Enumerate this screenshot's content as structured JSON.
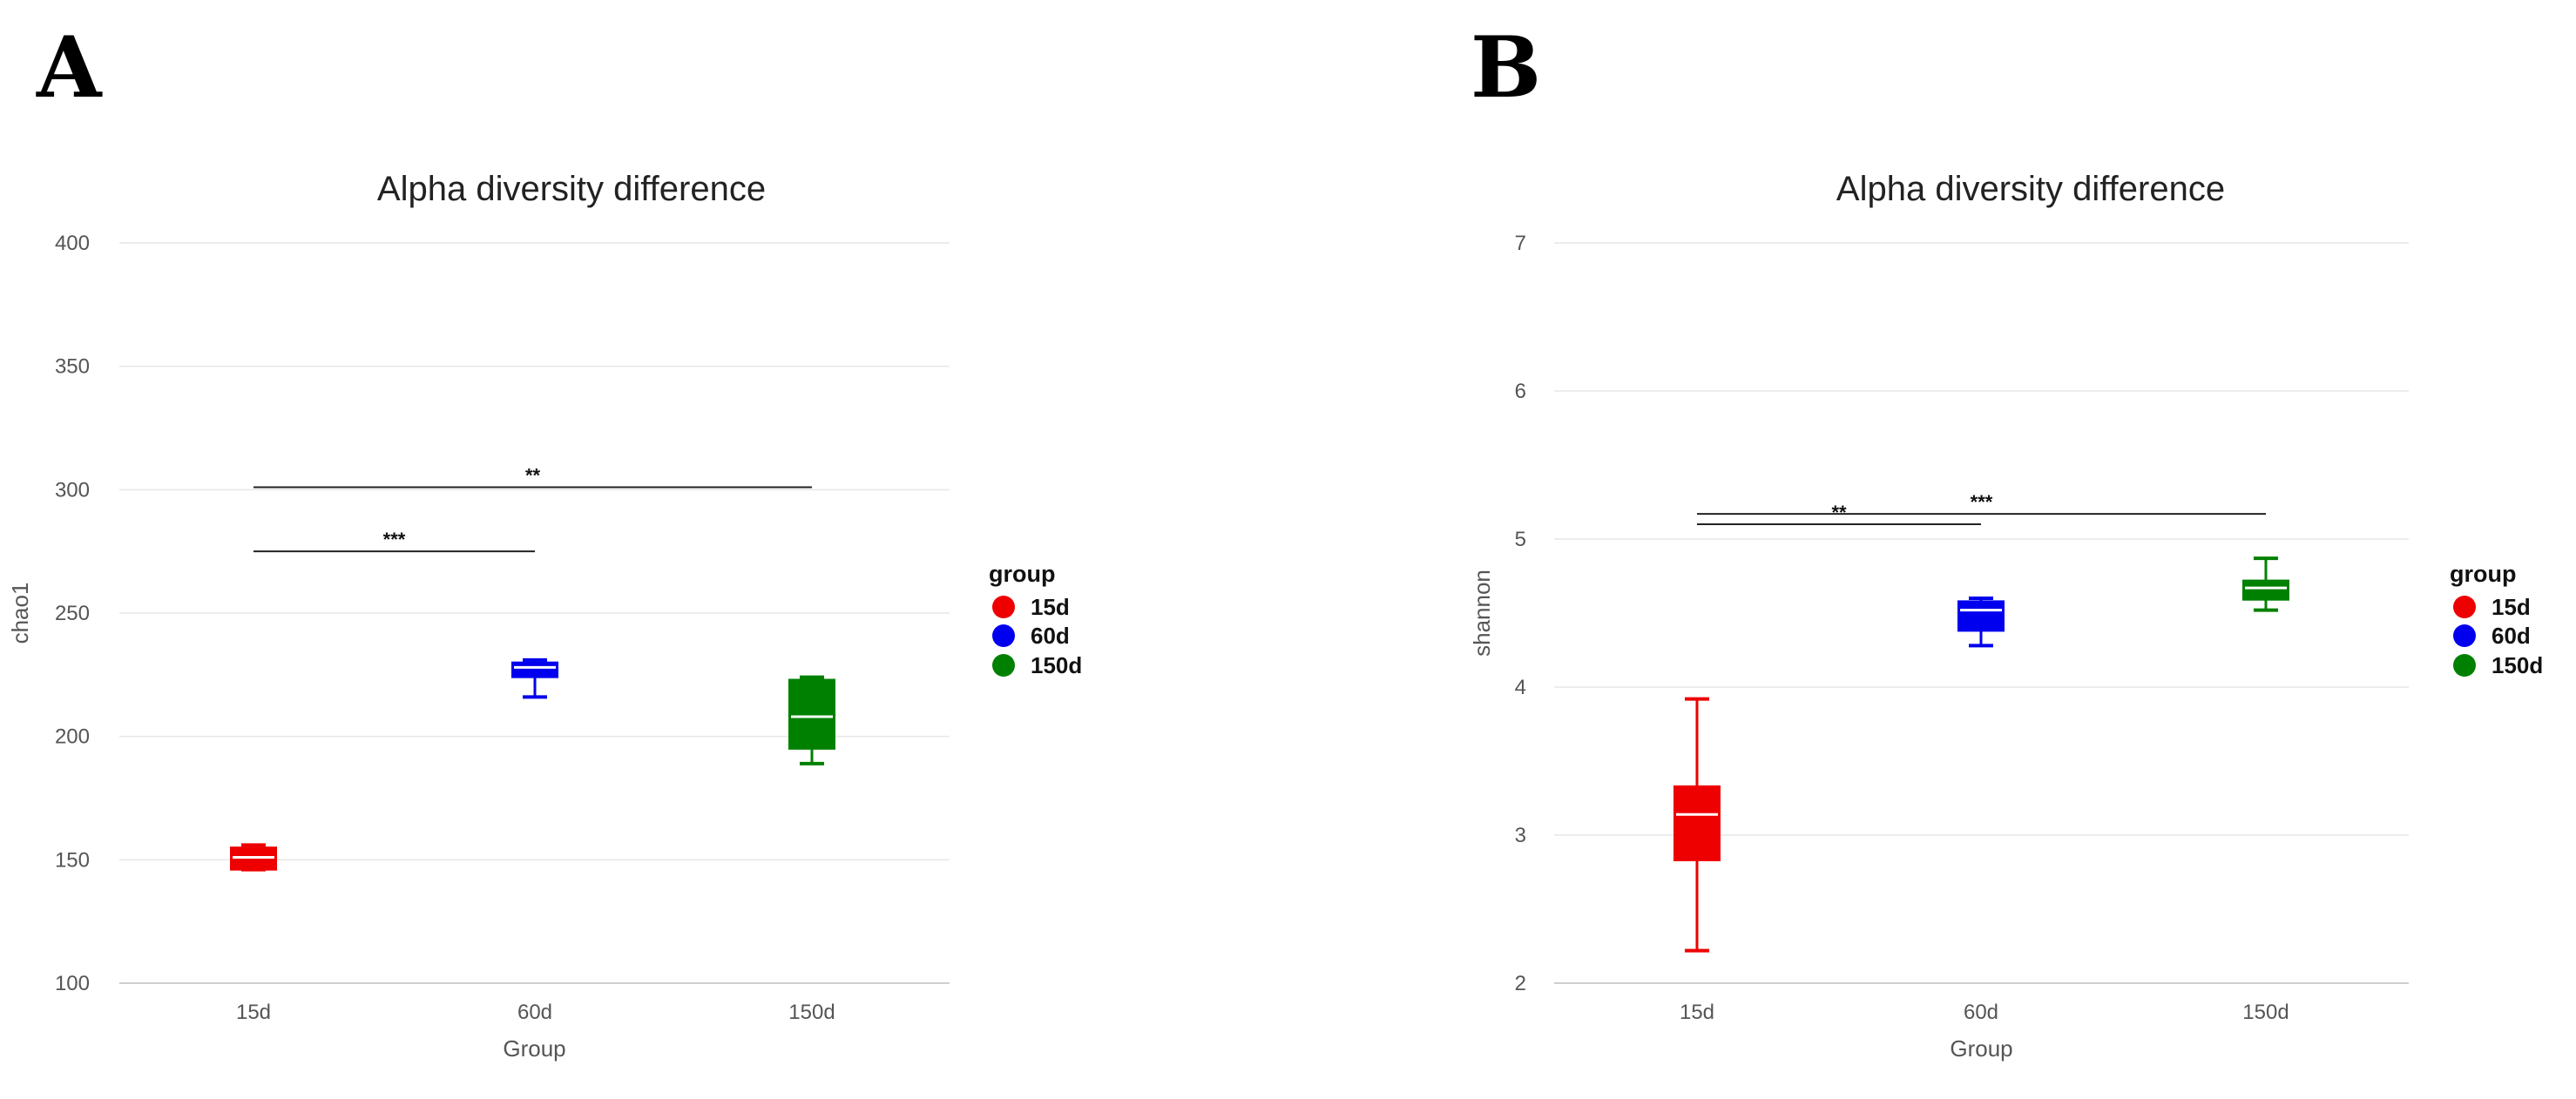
{
  "chart_data": [
    {
      "panel": "A",
      "type": "box",
      "title": "Alpha diversity difference",
      "xlabel": "Group",
      "ylabel": "chao1",
      "categories": [
        "15d",
        "60d",
        "150d"
      ],
      "ylim": [
        100,
        400
      ],
      "yticks": [
        100,
        150,
        200,
        250,
        300,
        350,
        400
      ],
      "grid": true,
      "legend": {
        "title": "group",
        "position": "right",
        "entries": [
          "15d",
          "60d",
          "150d"
        ]
      },
      "colors": [
        "#ee0000",
        "#0000ee",
        "#008000"
      ],
      "boxes": [
        {
          "group": "15d",
          "min": 146,
          "q1": 146,
          "median": 151,
          "q3": 155,
          "max": 156
        },
        {
          "group": "60d",
          "min": 216,
          "q1": 224,
          "median": 228,
          "q3": 230,
          "max": 231
        },
        {
          "group": "150d",
          "min": 189,
          "q1": 195,
          "median": 208,
          "q3": 223,
          "max": 224
        }
      ],
      "significance": [
        {
          "from": "15d",
          "to": "60d",
          "y": 275,
          "label": "***"
        },
        {
          "from": "15d",
          "to": "150d",
          "y": 301,
          "label": "**"
        }
      ]
    },
    {
      "panel": "B",
      "type": "box",
      "title": "Alpha diversity difference",
      "xlabel": "Group",
      "ylabel": "shannon",
      "categories": [
        "15d",
        "60d",
        "150d"
      ],
      "ylim": [
        2,
        7
      ],
      "yticks": [
        2,
        3,
        4,
        5,
        6,
        7
      ],
      "grid": true,
      "legend": {
        "title": "group",
        "position": "right",
        "entries": [
          "15d",
          "60d",
          "150d"
        ]
      },
      "colors": [
        "#ee0000",
        "#0000ee",
        "#008000"
      ],
      "boxes": [
        {
          "group": "15d",
          "min": 2.22,
          "q1": 2.83,
          "median": 3.14,
          "q3": 3.33,
          "max": 3.92
        },
        {
          "group": "60d",
          "min": 4.28,
          "q1": 4.38,
          "median": 4.52,
          "q3": 4.58,
          "max": 4.6
        },
        {
          "group": "150d",
          "min": 4.52,
          "q1": 4.59,
          "median": 4.67,
          "q3": 4.72,
          "max": 4.87
        }
      ],
      "significance": [
        {
          "from": "15d",
          "to": "60d",
          "y": 5.1,
          "label": "**"
        },
        {
          "from": "15d",
          "to": "150d",
          "y": 5.17,
          "label": "***"
        }
      ]
    }
  ]
}
